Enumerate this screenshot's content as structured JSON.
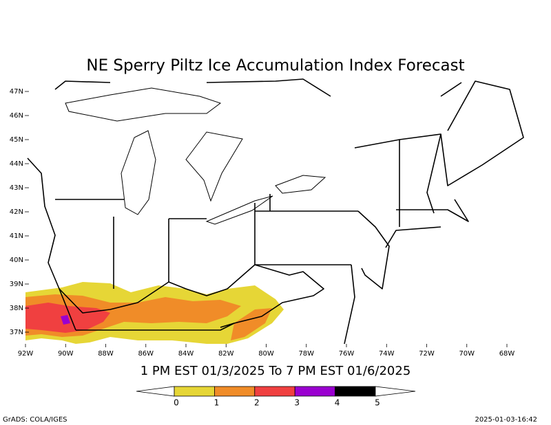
{
  "title": "NE Sperry Piltz Ice Accumulation Index Forecast",
  "subtitle": "1 PM EST 01/3/2025 To 7 PM EST 01/6/2025",
  "latitude_labels": [
    "47N",
    "46N",
    "45N",
    "44N",
    "43N",
    "42N",
    "41N",
    "40N",
    "39N",
    "38N",
    "37N"
  ],
  "longitude_labels": [
    "92W",
    "90W",
    "88W",
    "86W",
    "84W",
    "82W",
    "80W",
    "78W",
    "76W",
    "74W",
    "72W",
    "70W",
    "68W"
  ],
  "legend": {
    "ticks": [
      0,
      1,
      2,
      3,
      4,
      5
    ],
    "colors": [
      "#e6d636",
      "#f08c28",
      "#f04040",
      "#9a00d0",
      "#000000"
    ]
  },
  "footer": {
    "left": "GrADS: COLA/IGES",
    "right": "2025-01-03-16:42"
  }
}
